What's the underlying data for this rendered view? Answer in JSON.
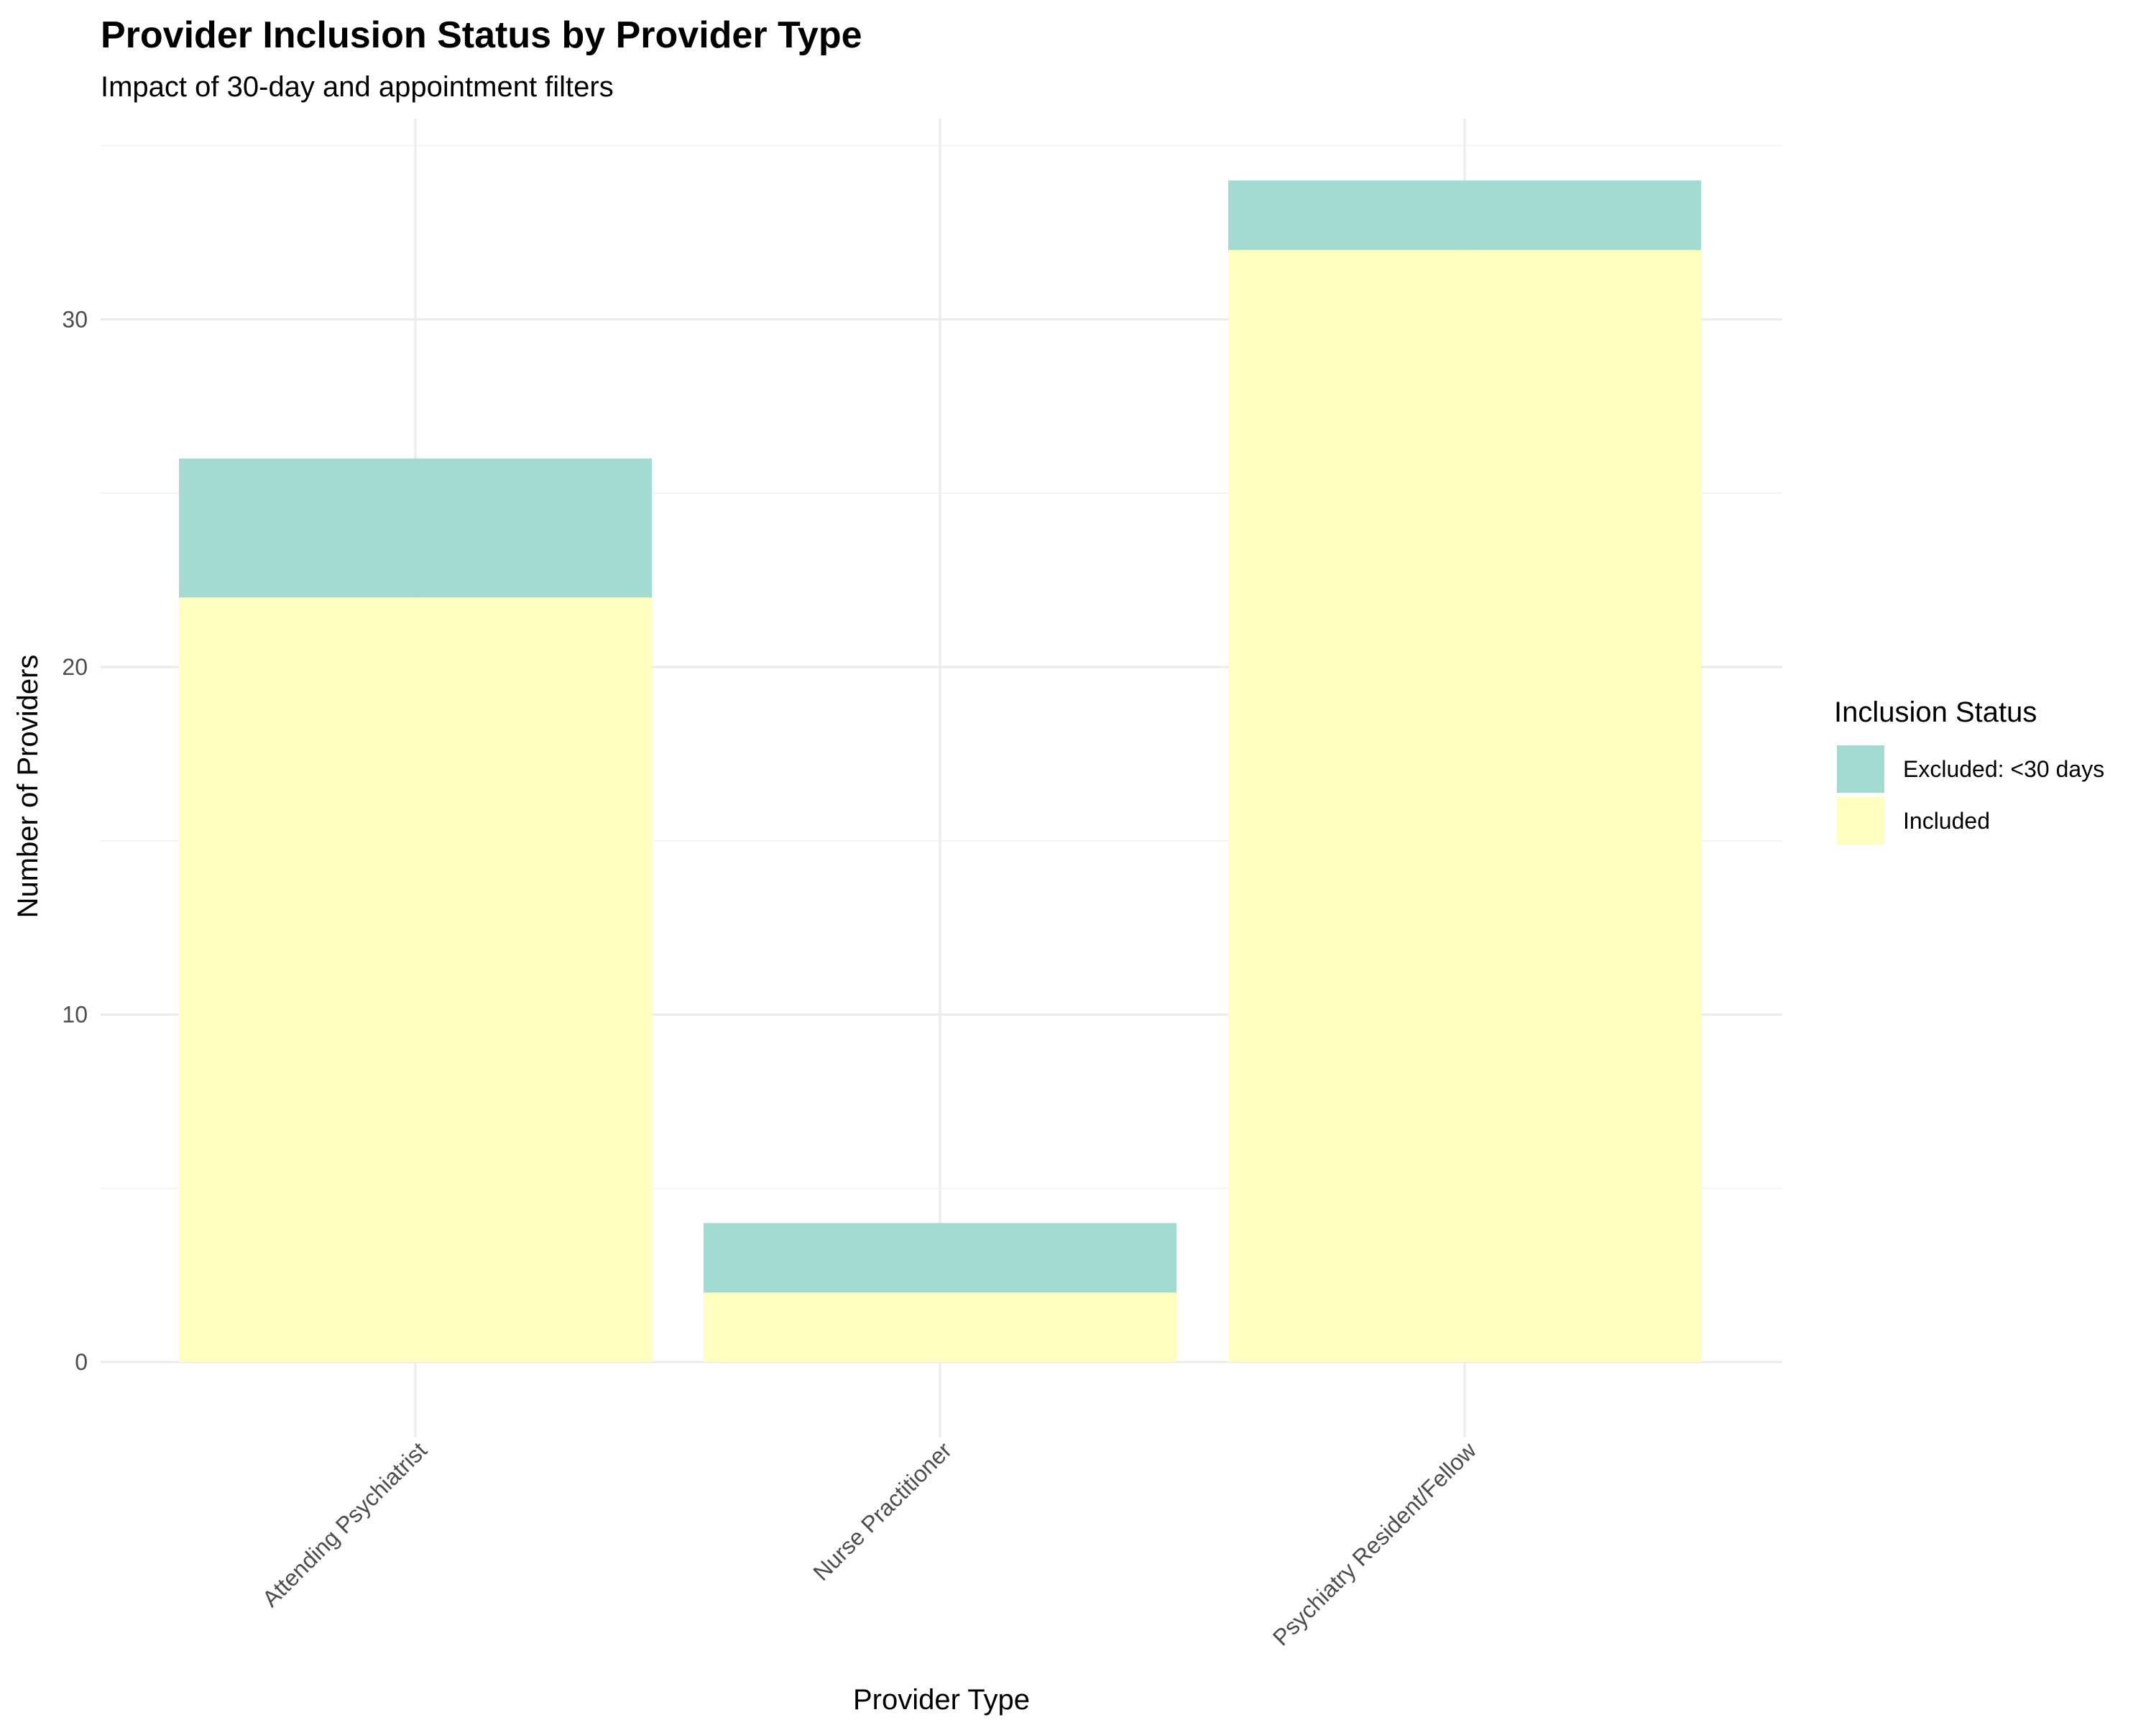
{
  "chart_data": {
    "type": "bar",
    "stacked": true,
    "title": "Provider Inclusion Status by Provider Type",
    "subtitle": "Impact of 30-day and appointment filters",
    "xlabel": "Provider Type",
    "ylabel": "Number of Providers",
    "categories": [
      "Attending Psychiatrist",
      "Nurse Practitioner",
      "Psychiatry Resident/Fellow"
    ],
    "series": [
      {
        "name": "Included",
        "values": [
          22,
          2,
          32
        ],
        "color": "#ffffbf"
      },
      {
        "name": "Excluded: <30 days",
        "values": [
          4,
          2,
          2
        ],
        "color": "#a1dbd2"
      }
    ],
    "ylim": [
      0,
      35
    ],
    "yticks": [
      0,
      10,
      20,
      30
    ],
    "grid": true,
    "legend": {
      "title": "Inclusion Status",
      "position": "right",
      "order": [
        "Excluded: <30 days",
        "Included"
      ]
    }
  }
}
